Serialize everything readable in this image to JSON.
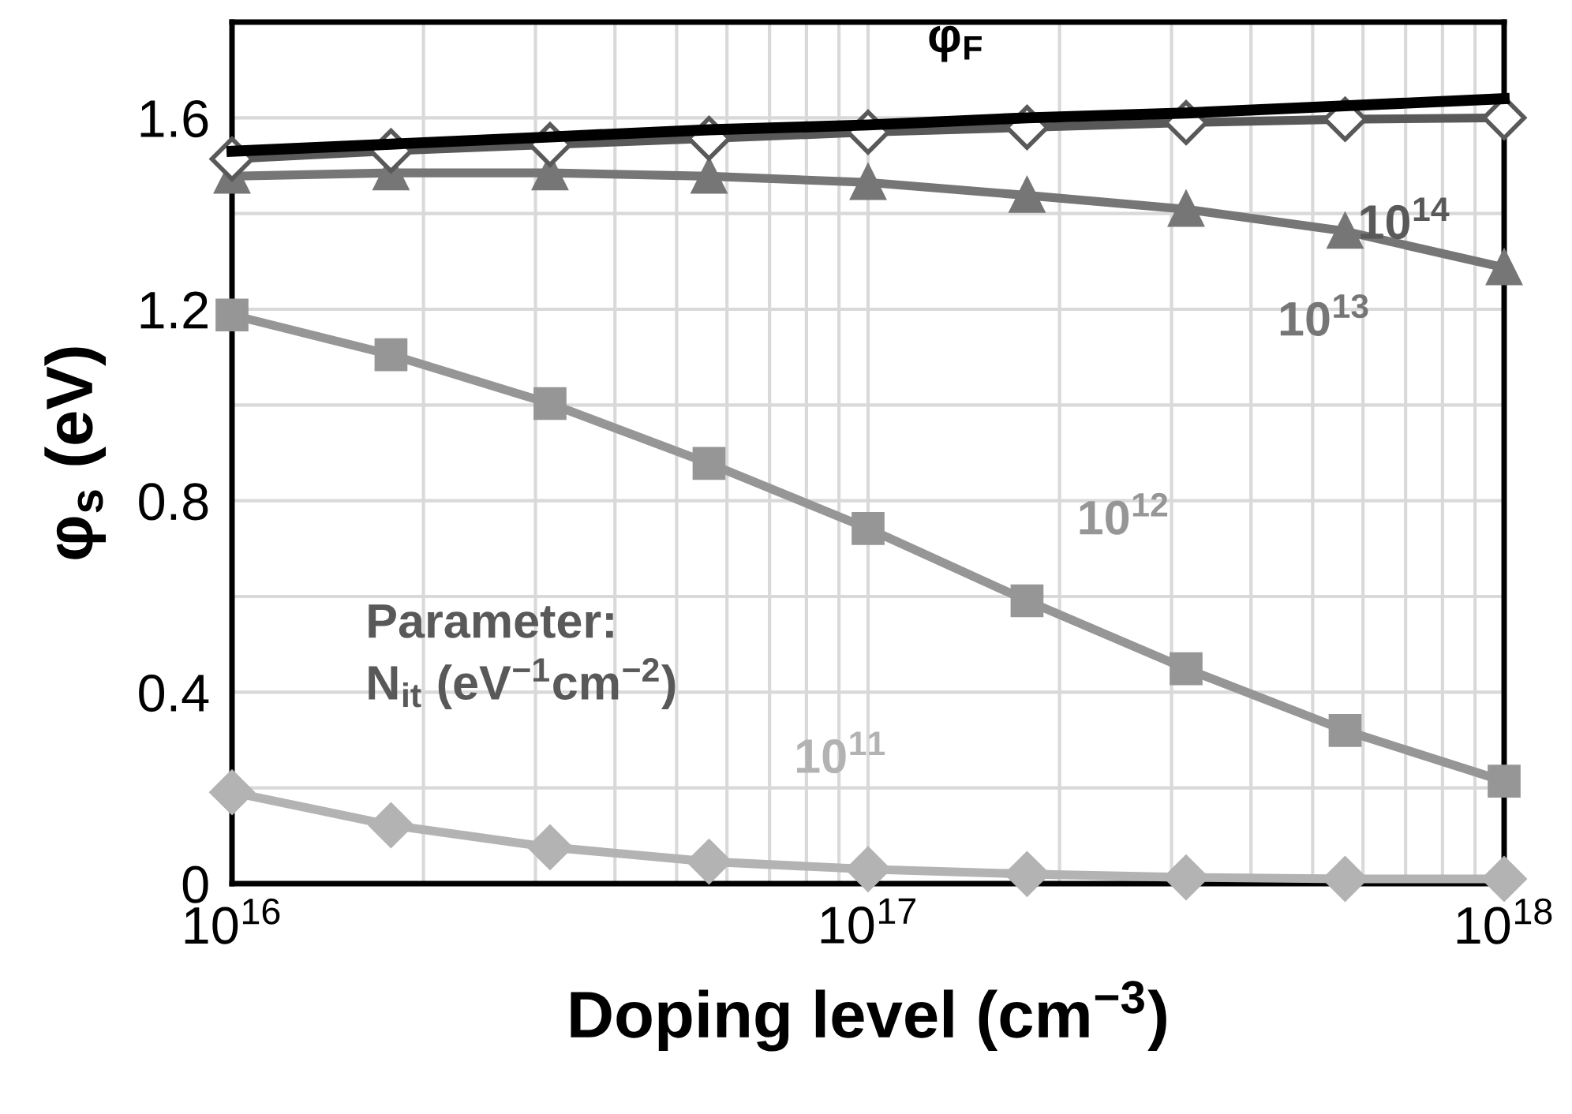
{
  "chart_data": {
    "type": "line",
    "xlabel": "Doping level (cm$^{−3}$)",
    "ylabel": "φ$_{s}$ (eV)",
    "x": [
      1e+16,
      1.778e+16,
      3.162e+16,
      5.623e+16,
      1e+17,
      1.778e+17,
      3.162e+17,
      5.623e+17,
      1e+18
    ],
    "series": [
      {
        "name": "φ$_{F}$",
        "color": "#000000",
        "marker": "none",
        "values": [
          1.53,
          1.545,
          1.56,
          1.575,
          1.585,
          1.6,
          1.61,
          1.625,
          1.64
        ]
      },
      {
        "name": "10$^{14}$",
        "color": "#595959",
        "marker": "diamond",
        "values": [
          1.514,
          1.531,
          1.544,
          1.557,
          1.57,
          1.58,
          1.59,
          1.597,
          1.6
        ]
      },
      {
        "name": "10$^{13}$",
        "color": "#767676",
        "marker": "triangle",
        "values": [
          1.478,
          1.485,
          1.485,
          1.478,
          1.465,
          1.438,
          1.409,
          1.363,
          1.287
        ]
      },
      {
        "name": "10$^{12}$",
        "color": "#969696",
        "marker": "square",
        "values": [
          1.188,
          1.105,
          1.003,
          0.878,
          0.742,
          0.591,
          0.449,
          0.32,
          0.214
        ]
      },
      {
        "name": "10$^{11}$",
        "color": "#b3b3b3",
        "marker": "diamond",
        "values": [
          0.191,
          0.122,
          0.076,
          0.046,
          0.03,
          0.02,
          0.013,
          0.01,
          0.01
        ]
      }
    ],
    "annotations": [
      "Parameter:",
      "N$_{it}$ (eV$^{−1}$cm$^{−2}$)"
    ],
    "log": "x",
    "xlim": [
      1e+16,
      1e+18
    ],
    "xticks": [
      {
        "value": 1e+16,
        "label": "10$^{16}$"
      },
      {
        "value": 1e+17,
        "label": "10$^{17}$"
      },
      {
        "value": 1e+18,
        "label": "10$^{18}$"
      }
    ],
    "ylim": [
      0,
      1.8
    ],
    "yticks": [
      0,
      {
        "value": 0.2,
        "label": null
      },
      0.4,
      {
        "value": 0.6,
        "label": null
      },
      0.8,
      {
        "value": 1.0,
        "label": null
      },
      1.2,
      {
        "value": 1.4,
        "label": null
      },
      1.6,
      {
        "value": 1.8,
        "label": null
      }
    ],
    "grid": true,
    "line_style": "solid",
    "legend": false
  }
}
